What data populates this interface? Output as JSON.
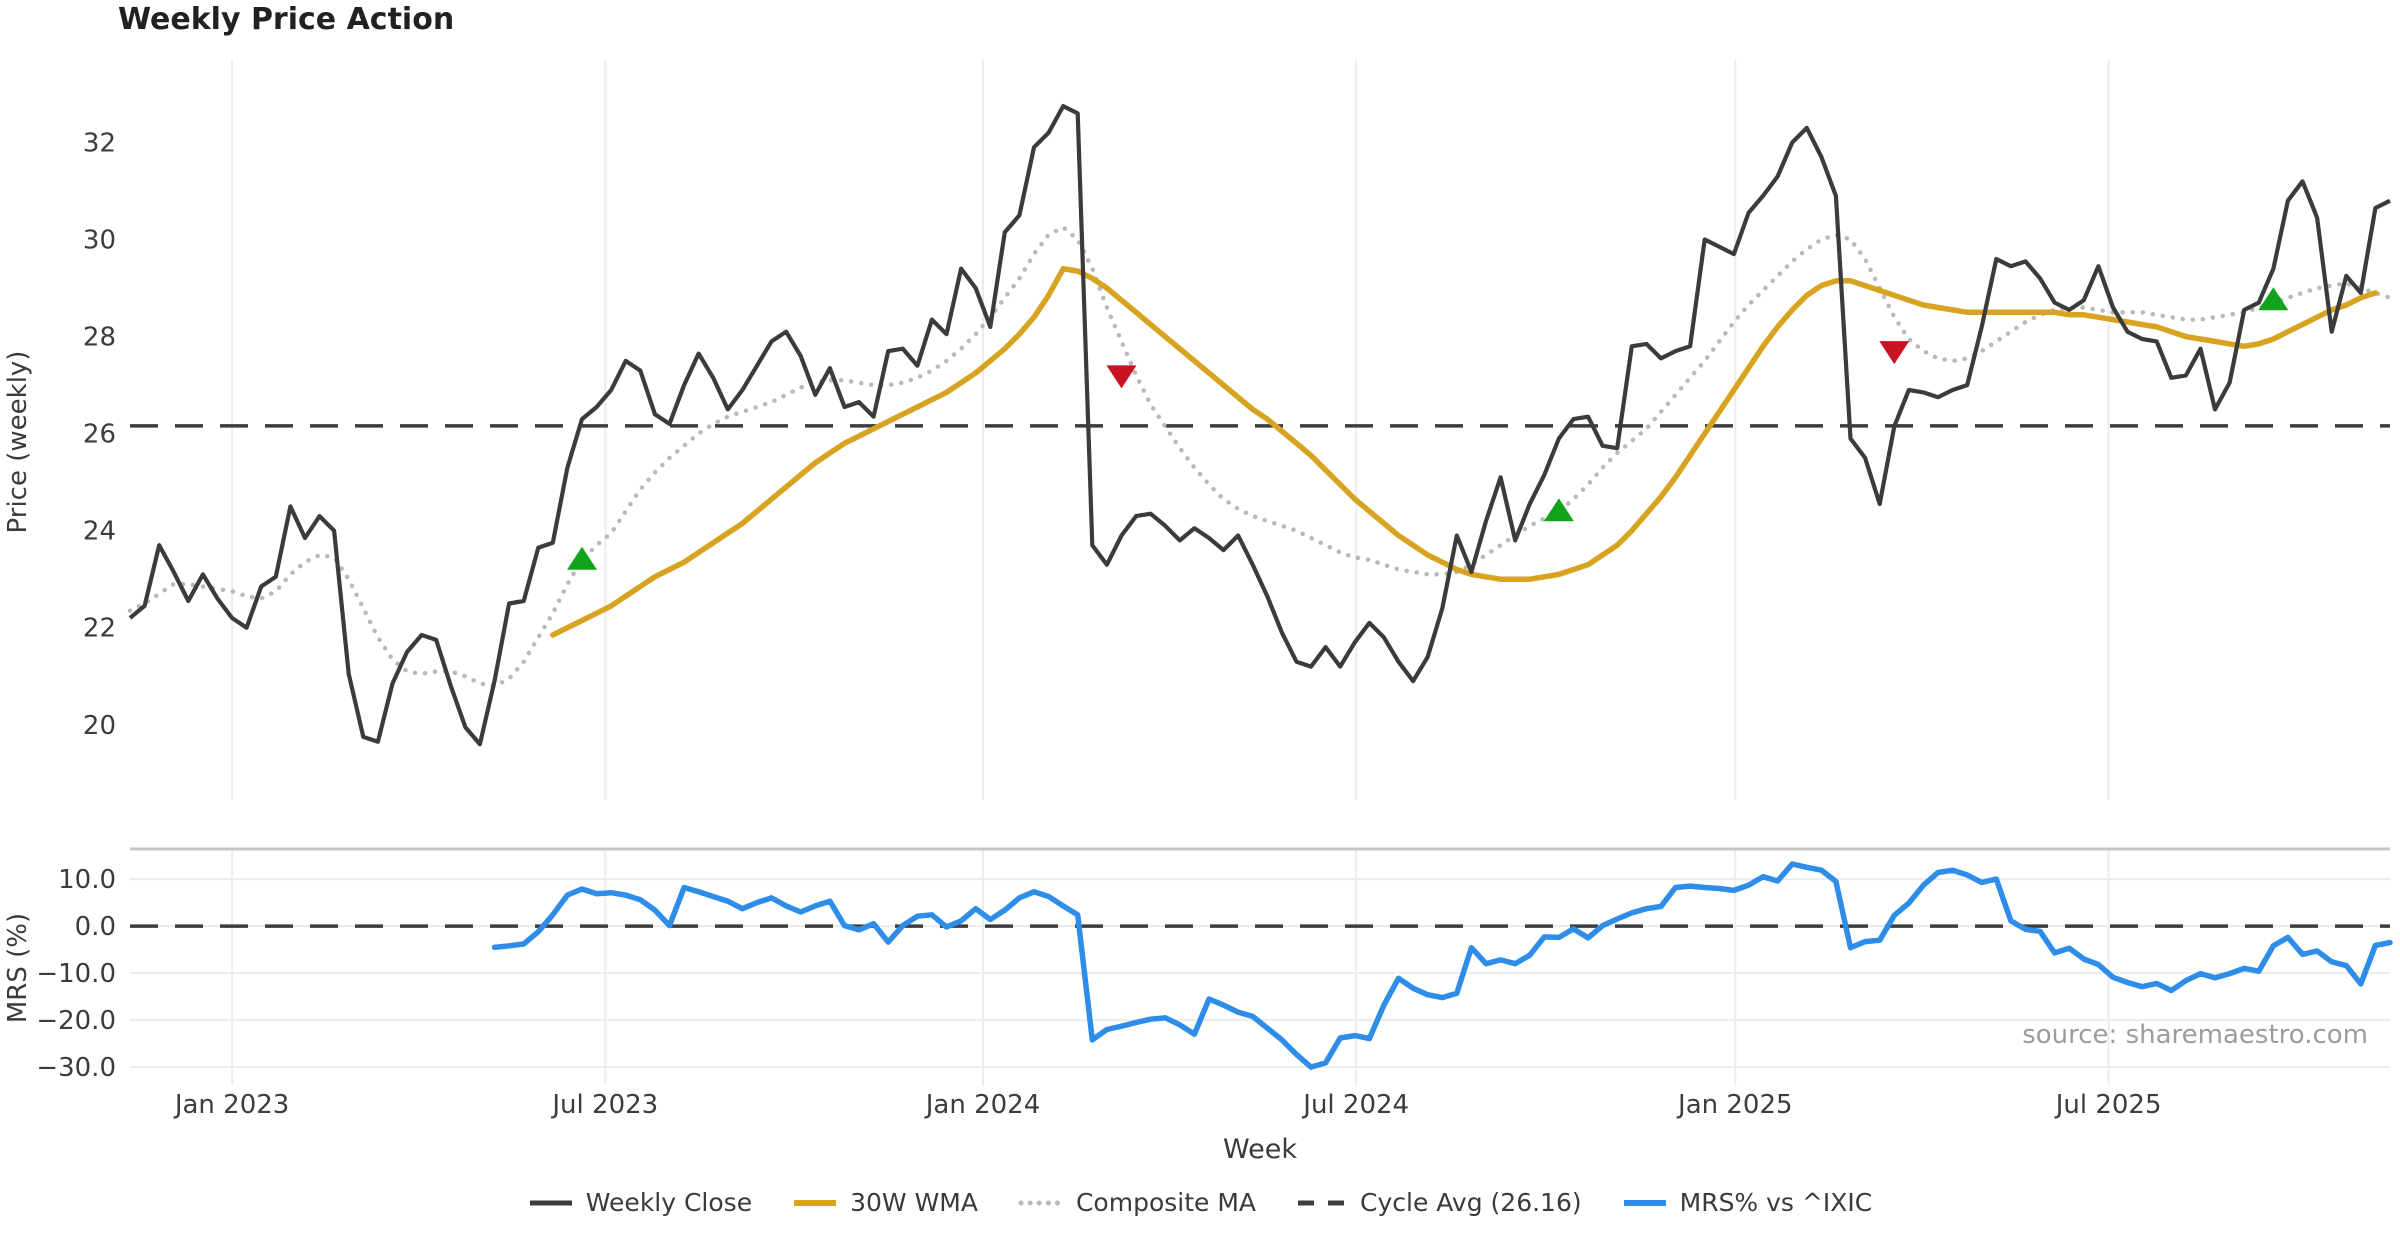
{
  "title": "Weekly Price Action",
  "xlabel": "Week",
  "source": "source: sharemaestro.com",
  "price_panel": {
    "ylabel": "Price (weekly)",
    "yticks": [
      20,
      22,
      24,
      26,
      28,
      30,
      32
    ],
    "ylim": [
      18.45,
      33.7
    ],
    "cycle_avg": 26.16
  },
  "mrs_panel": {
    "ylabel": "MRS (%)",
    "yticks": [
      10.0,
      0.0,
      -10.0,
      -20.0,
      -30.0
    ],
    "ylim": [
      -33.8,
      16.4
    ],
    "zero_line": 0.0
  },
  "x_axis": {
    "tick_labels": [
      "Jan 2023",
      "Jul 2023",
      "Jan 2024",
      "Jul 2024",
      "Jan 2025",
      "Jul 2025"
    ],
    "tick_weeks": [
      7,
      32.6,
      58.5,
      84.1,
      110.1,
      135.7
    ],
    "n_weeks": 156
  },
  "colors": {
    "weekly_close": "#3b3b3b",
    "wma": "#d7a321",
    "composite": "#b9b9b9",
    "cycle_avg": "#3d3d3d",
    "mrs": "#2d8de8",
    "buy_marker": "#12a21c",
    "sell_marker": "#c81422",
    "gridline": "#ececec",
    "panel_spine": "#c5c5c5",
    "tick_text": "#3c3c3c"
  },
  "legend": {
    "items": [
      {
        "label": "Weekly Close",
        "style": "solid",
        "color_key": "weekly_close"
      },
      {
        "label": "30W WMA",
        "style": "solid",
        "color_key": "wma"
      },
      {
        "label": "Composite MA",
        "style": "dotted",
        "color_key": "composite"
      },
      {
        "label": "Cycle Avg (26.16)",
        "style": "dashed",
        "color_key": "cycle_avg"
      },
      {
        "label": "MRS% vs ^IXIC",
        "style": "solid",
        "color_key": "mrs"
      }
    ]
  },
  "chart_data": [
    {
      "type": "line",
      "panel": "price",
      "title": "Weekly Price Action",
      "xlabel": "Week",
      "ylabel": "Price (weekly)",
      "ylim": [
        18.45,
        33.7
      ],
      "grid": "vertical-only",
      "legend_position": "bottom-center",
      "series": [
        {
          "name": "Weekly Close",
          "start_week": 0,
          "values": [
            22.2,
            22.45,
            23.7,
            23.15,
            22.55,
            23.1,
            22.6,
            22.2,
            22.0,
            22.85,
            23.05,
            24.5,
            23.85,
            24.3,
            24.0,
            21.05,
            19.75,
            19.65,
            20.85,
            21.5,
            21.85,
            21.75,
            20.8,
            19.95,
            19.6,
            20.9,
            22.5,
            22.55,
            23.65,
            23.75,
            25.3,
            26.3,
            26.55,
            26.9,
            27.5,
            27.3,
            26.4,
            26.2,
            27.0,
            27.65,
            27.15,
            26.5,
            26.9,
            27.4,
            27.9,
            28.1,
            27.6,
            26.8,
            27.35,
            26.55,
            26.65,
            26.35,
            27.7,
            27.75,
            27.4,
            28.35,
            28.05,
            29.4,
            29.0,
            28.2,
            30.15,
            30.5,
            31.9,
            32.2,
            32.75,
            32.6,
            23.7,
            23.3,
            23.9,
            24.3,
            24.35,
            24.1,
            23.8,
            24.05,
            23.85,
            23.6,
            23.9,
            23.3,
            22.65,
            21.9,
            21.3,
            21.2,
            21.6,
            21.2,
            21.7,
            22.1,
            21.8,
            21.3,
            20.9,
            21.4,
            22.4,
            23.9,
            23.15,
            24.2,
            25.1,
            23.8,
            24.55,
            25.15,
            25.9,
            26.3,
            26.35,
            25.75,
            25.7,
            27.8,
            27.85,
            27.55,
            27.7,
            27.8,
            30.0,
            29.85,
            29.7,
            30.55,
            30.9,
            31.3,
            32.0,
            32.3,
            31.7,
            30.9,
            25.9,
            25.5,
            24.55,
            26.15,
            26.9,
            26.85,
            26.75,
            26.9,
            27.0,
            28.2,
            29.6,
            29.45,
            29.55,
            29.2,
            28.7,
            28.55,
            28.75,
            29.45,
            28.6,
            28.1,
            27.95,
            27.9,
            27.15,
            27.2,
            27.75,
            26.5,
            27.05,
            28.55,
            28.7,
            29.4,
            30.8,
            31.2,
            30.45,
            28.1,
            29.25,
            28.9,
            30.65,
            30.8
          ]
        },
        {
          "name": "30W WMA",
          "start_week": 29,
          "values": [
            21.85,
            22.0,
            22.15,
            22.3,
            22.45,
            22.65,
            22.85,
            23.05,
            23.2,
            23.35,
            23.55,
            23.75,
            23.95,
            24.15,
            24.4,
            24.65,
            24.9,
            25.15,
            25.4,
            25.6,
            25.8,
            25.95,
            26.1,
            26.25,
            26.4,
            26.55,
            26.7,
            26.85,
            27.05,
            27.25,
            27.5,
            27.75,
            28.05,
            28.4,
            28.85,
            29.4,
            29.35,
            29.2,
            29.0,
            28.75,
            28.5,
            28.25,
            28.0,
            27.75,
            27.5,
            27.25,
            27.0,
            26.75,
            26.5,
            26.3,
            26.05,
            25.8,
            25.55,
            25.25,
            24.95,
            24.65,
            24.4,
            24.15,
            23.9,
            23.7,
            23.5,
            23.35,
            23.2,
            23.1,
            23.05,
            23.0,
            23.0,
            23.0,
            23.05,
            23.1,
            23.2,
            23.3,
            23.5,
            23.7,
            24.0,
            24.35,
            24.7,
            25.1,
            25.55,
            26.0,
            26.45,
            26.9,
            27.35,
            27.8,
            28.2,
            28.55,
            28.85,
            29.05,
            29.15,
            29.15,
            29.05,
            28.95,
            28.85,
            28.75,
            28.65,
            28.6,
            28.55,
            28.5,
            28.5,
            28.5,
            28.5,
            28.5,
            28.5,
            28.5,
            28.45,
            28.45,
            28.4,
            28.35,
            28.3,
            28.25,
            28.2,
            28.1,
            28.0,
            27.95,
            27.9,
            27.85,
            27.8,
            27.85,
            27.95,
            28.1,
            28.25,
            28.4,
            28.55,
            28.65,
            28.8,
            28.9
          ]
        },
        {
          "name": "Composite MA",
          "start_week": 0,
          "values": [
            22.35,
            22.5,
            22.7,
            22.9,
            22.9,
            22.85,
            22.8,
            22.75,
            22.65,
            22.6,
            22.75,
            23.1,
            23.35,
            23.5,
            23.45,
            23.0,
            22.4,
            21.8,
            21.35,
            21.1,
            21.05,
            21.1,
            21.1,
            21.0,
            20.85,
            20.8,
            20.95,
            21.3,
            21.8,
            22.3,
            22.9,
            23.4,
            23.7,
            23.95,
            24.4,
            24.85,
            25.2,
            25.5,
            25.75,
            26.0,
            26.2,
            26.35,
            26.45,
            26.55,
            26.65,
            26.8,
            26.95,
            27.05,
            27.1,
            27.1,
            27.05,
            27.0,
            27.0,
            27.05,
            27.15,
            27.3,
            27.5,
            27.75,
            28.05,
            28.4,
            28.8,
            29.2,
            29.7,
            30.1,
            30.25,
            30.0,
            29.4,
            28.6,
            27.9,
            27.2,
            26.6,
            26.15,
            25.7,
            25.3,
            24.95,
            24.65,
            24.45,
            24.3,
            24.2,
            24.1,
            24.0,
            23.85,
            23.7,
            23.55,
            23.45,
            23.4,
            23.3,
            23.2,
            23.15,
            23.1,
            23.1,
            23.15,
            23.3,
            23.5,
            23.7,
            23.9,
            24.1,
            24.25,
            24.4,
            24.65,
            24.95,
            25.3,
            25.6,
            25.85,
            26.1,
            26.45,
            26.8,
            27.15,
            27.5,
            27.9,
            28.3,
            28.65,
            28.95,
            29.25,
            29.55,
            29.8,
            30.0,
            30.1,
            30.0,
            29.6,
            29.0,
            28.4,
            27.95,
            27.7,
            27.55,
            27.5,
            27.55,
            27.7,
            27.9,
            28.1,
            28.3,
            28.45,
            28.55,
            28.6,
            28.6,
            28.55,
            28.5,
            28.5,
            28.5,
            28.45,
            28.4,
            28.35,
            28.35,
            28.4,
            28.45,
            28.5,
            28.6,
            28.7,
            28.8,
            28.9,
            29.0,
            29.05,
            29.1,
            29.0,
            28.9,
            28.8
          ]
        }
      ],
      "hline": {
        "name": "Cycle Avg",
        "value": 26.16,
        "style": "dashed"
      },
      "markers": {
        "buy": [
          {
            "week": 31,
            "value": 23.4
          },
          {
            "week": 98,
            "value": 24.4
          },
          {
            "week": 147,
            "value": 28.75
          }
        ],
        "sell": [
          {
            "week": 68,
            "value": 27.2
          },
          {
            "week": 121,
            "value": 27.7
          }
        ]
      }
    },
    {
      "type": "line",
      "panel": "mrs",
      "ylabel": "MRS (%)",
      "ylim": [
        -33.8,
        16.4
      ],
      "grid": "horizontal-and-vertical",
      "hline": {
        "name": "zero",
        "value": 0.0,
        "style": "dashed"
      },
      "series": [
        {
          "name": "MRS% vs ^IXIC",
          "start_week": 25,
          "values": [
            -4.5,
            -4.2,
            -3.8,
            -1.2,
            2.4,
            6.6,
            7.9,
            6.9,
            7.1,
            6.6,
            5.6,
            3.4,
            0.1,
            8.2,
            7.3,
            6.3,
            5.3,
            3.7,
            5.0,
            6.0,
            4.3,
            3.0,
            4.3,
            5.3,
            0.1,
            -0.8,
            0.5,
            -3.4,
            0.1,
            2.1,
            2.4,
            -0.2,
            1.1,
            3.7,
            1.4,
            3.4,
            6.0,
            7.3,
            6.3,
            4.3,
            2.4,
            -24.2,
            -22.0,
            -21.3,
            -20.5,
            -19.8,
            -19.5,
            -21.0,
            -23.0,
            -15.5,
            -16.8,
            -18.3,
            -19.2,
            -21.7,
            -24.2,
            -27.3,
            -30.0,
            -29.1,
            -23.8,
            -23.3,
            -23.9,
            -16.8,
            -11.1,
            -13.2,
            -14.6,
            -15.2,
            -14.3,
            -4.6,
            -8.0,
            -7.2,
            -8.0,
            -6.2,
            -2.3,
            -2.4,
            -0.6,
            -2.5,
            0.1,
            1.5,
            2.8,
            3.7,
            4.2,
            8.2,
            8.5,
            8.2,
            8.0,
            7.6,
            8.7,
            10.5,
            9.6,
            13.2,
            12.5,
            11.9,
            9.5,
            -4.6,
            -3.3,
            -3.0,
            2.3,
            4.9,
            8.7,
            11.4,
            11.9,
            10.9,
            9.3,
            10.0,
            1.1,
            -0.7,
            -1.1,
            -5.7,
            -4.7,
            -7.0,
            -8.2,
            -10.9,
            -12.0,
            -12.9,
            -12.2,
            -13.7,
            -11.6,
            -10.1,
            -11.0,
            -10.1,
            -9.0,
            -9.6,
            -4.2,
            -2.4,
            -6.0,
            -5.3,
            -7.6,
            -8.4,
            -12.3,
            -4.1,
            -3.5
          ]
        }
      ]
    }
  ]
}
